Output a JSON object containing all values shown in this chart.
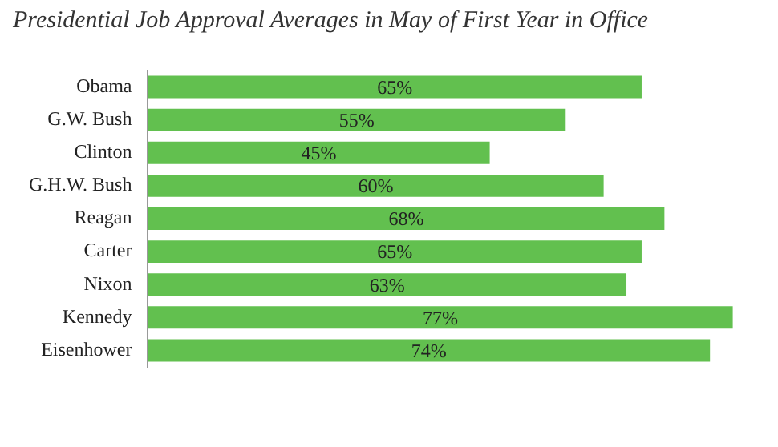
{
  "chart_data": {
    "type": "bar",
    "orientation": "horizontal",
    "title": "Presidential Job Approval Averages in May of First Year in Office",
    "categories": [
      "Obama",
      "G.W. Bush",
      "Clinton",
      "G.H.W. Bush",
      "Reagan",
      "Carter",
      "Nixon",
      "Kennedy",
      "Eisenhower"
    ],
    "values": [
      65,
      55,
      45,
      60,
      68,
      65,
      63,
      77,
      74
    ],
    "value_labels": [
      "65%",
      "55%",
      "45%",
      "60%",
      "68%",
      "65%",
      "63%",
      "77%",
      "74%"
    ],
    "color": "#62c04f",
    "legend": false,
    "tick_labels": "y"
  }
}
